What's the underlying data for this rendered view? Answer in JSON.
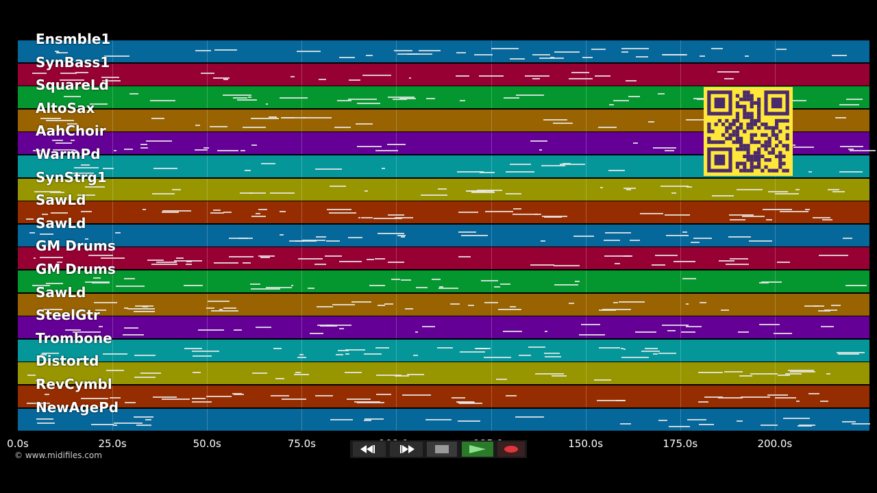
{
  "tracks": [
    {
      "label": "Ensmble1",
      "color": "#05679a"
    },
    {
      "label": "SynBass1",
      "color": "#960033"
    },
    {
      "label": "SquareLd",
      "color": "#05972f"
    },
    {
      "label": "AltoSax",
      "color": "#986300"
    },
    {
      "label": "AahChoir",
      "color": "#640095"
    },
    {
      "label": "WarmPd",
      "color": "#05969a"
    },
    {
      "label": "SynStrg1",
      "color": "#979600"
    },
    {
      "label": "SawLd",
      "color": "#962d00"
    },
    {
      "label": "SawLd",
      "color": "#05679a"
    },
    {
      "label": "GM Drums",
      "color": "#960033"
    },
    {
      "label": "GM Drums",
      "color": "#05972f"
    },
    {
      "label": "SawLd",
      "color": "#986300"
    },
    {
      "label": "SteelGtr",
      "color": "#640095"
    },
    {
      "label": "Trombone",
      "color": "#05969a"
    },
    {
      "label": "Distortd",
      "color": "#979600"
    },
    {
      "label": "RevCymbl",
      "color": "#962d00"
    },
    {
      "label": "NewAgePd",
      "color": "#05679a"
    }
  ],
  "timeline": {
    "ticks": [
      "0.0s",
      "25.0s",
      "50.0s",
      "75.0s",
      "100.0s",
      "125.0s",
      "150.0s",
      "175.0s",
      "200.0s"
    ],
    "seconds": [
      0,
      25,
      50,
      75,
      100,
      125,
      150,
      175,
      200
    ],
    "max_seconds": 225
  },
  "credit": "© www.midifiles.com",
  "transport": {
    "rewind_icon": "rewind-icon",
    "fast_forward_icon": "fast-forward-icon",
    "stop_icon": "stop-icon",
    "play_icon": "play-icon",
    "record_icon": "record-icon",
    "play_color": "#2a7a2a",
    "record_color": "#e0353a"
  },
  "qr_code": {
    "color": "#ffe83a",
    "ink": "#4a2a6a"
  }
}
